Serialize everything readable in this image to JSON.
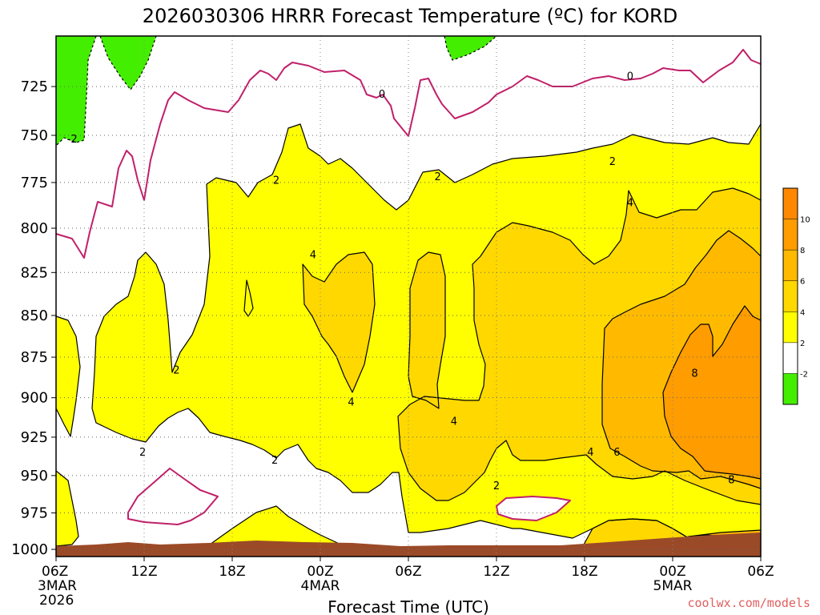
{
  "chart_data": {
    "type": "heatmap",
    "title": "2026030306 HRRR Forecast Temperature (ºC) for KORD",
    "xlabel": "Forecast Time (UTC)",
    "ylabel": "",
    "credit": "coolwx.com/models",
    "x_ticks": [
      {
        "label": "06Z",
        "label2": "3MAR",
        "label3": "2026",
        "hour": 0
      },
      {
        "label": "12Z",
        "label2": "",
        "label3": "",
        "hour": 6
      },
      {
        "label": "18Z",
        "label2": "",
        "label3": "",
        "hour": 12
      },
      {
        "label": "00Z",
        "label2": "4MAR",
        "label3": "",
        "hour": 18
      },
      {
        "label": "06Z",
        "label2": "",
        "label3": "",
        "hour": 24
      },
      {
        "label": "12Z",
        "label2": "",
        "label3": "",
        "hour": 30
      },
      {
        "label": "18Z",
        "label2": "",
        "label3": "",
        "hour": 36
      },
      {
        "label": "00Z",
        "label2": "5MAR",
        "label3": "",
        "hour": 42
      },
      {
        "label": "06Z",
        "label2": "",
        "label3": "",
        "hour": 48
      }
    ],
    "y_ticks": [
      725,
      750,
      775,
      800,
      825,
      850,
      875,
      900,
      925,
      950,
      975,
      1000
    ],
    "x_range_hours": [
      0,
      48
    ],
    "y_range_hPa": [
      700,
      1005
    ],
    "y_scale": "log-pressure",
    "grid": true,
    "colorbar": {
      "placement": "right",
      "levels": [
        -2,
        2,
        4,
        6,
        8,
        10
      ],
      "colors": [
        "#44ee00",
        "#ffffff",
        "#ffff00",
        "#ffd800",
        "#ffba00",
        "#ff9c00",
        "#ff8800"
      ]
    },
    "contour_labels": [
      {
        "text": "0",
        "hour": 22.2,
        "p": 729
      },
      {
        "text": "0",
        "hour": 39.1,
        "p": 720
      },
      {
        "text": "-2",
        "hour": 1.1,
        "p": 752
      },
      {
        "text": "2",
        "hour": 15.0,
        "p": 774
      },
      {
        "text": "2",
        "hour": 26.0,
        "p": 772
      },
      {
        "text": "2",
        "hour": 37.9,
        "p": 764
      },
      {
        "text": "4",
        "hour": 17.5,
        "p": 815
      },
      {
        "text": "4",
        "hour": 39.1,
        "p": 786
      },
      {
        "text": "2",
        "hour": 8.2,
        "p": 883
      },
      {
        "text": "4",
        "hour": 20.1,
        "p": 903
      },
      {
        "text": "4",
        "hour": 27.1,
        "p": 915
      },
      {
        "text": "2",
        "hour": 5.9,
        "p": 935
      },
      {
        "text": "2",
        "hour": 14.9,
        "p": 940
      },
      {
        "text": "2",
        "hour": 30.0,
        "p": 957
      },
      {
        "text": "4",
        "hour": 36.4,
        "p": 935
      },
      {
        "text": "6",
        "hour": 38.2,
        "p": 935
      },
      {
        "text": "8",
        "hour": 43.5,
        "p": 885
      },
      {
        "text": "8",
        "hour": 46.0,
        "p": 953
      }
    ]
  }
}
